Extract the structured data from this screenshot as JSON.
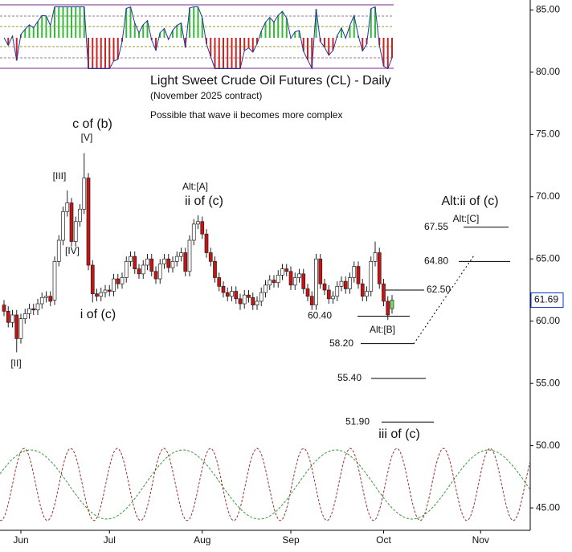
{
  "chart_data": {
    "type": "candlestick",
    "title": "Light Sweet Crude Oil Futures (CL) - Daily",
    "subtitle": "(November 2025 contract)",
    "note": "Possible that wave ii becomes more complex",
    "annotations": [
      "c of (b)",
      "[V]",
      "[III]",
      "[IV]",
      "[II]",
      "i of (c)",
      "Alt:[A]",
      "ii of (c)",
      "Alt:ii of (c)",
      "Alt:[C]",
      "Alt:[B]",
      "iii of (c)"
    ],
    "categories": [
      null,
      null,
      null,
      null,
      "Jun",
      null,
      null,
      null,
      null,
      null,
      null,
      null,
      null,
      null,
      null,
      null,
      null,
      null,
      null,
      null,
      null,
      null,
      null,
      null,
      null,
      "Jul",
      null,
      null,
      null,
      null,
      null,
      null,
      null,
      null,
      null,
      null,
      null,
      null,
      null,
      null,
      null,
      null,
      null,
      null,
      null,
      null,
      null,
      "Aug",
      null,
      null,
      null,
      null,
      null,
      null,
      null,
      null,
      null,
      null,
      null,
      null,
      null,
      null,
      null,
      null,
      null,
      null,
      null,
      null,
      "Sep",
      null,
      null,
      null,
      null,
      null,
      null,
      null,
      null,
      null,
      null,
      null,
      null,
      null,
      null,
      null,
      null,
      null,
      null,
      null,
      null,
      null,
      "Oct",
      null,
      null,
      null,
      null,
      null,
      null,
      null,
      null,
      null,
      null,
      null,
      null,
      null,
      null,
      null,
      null,
      null,
      null,
      null,
      null,
      null,
      null,
      "Nov",
      null,
      null,
      null,
      null,
      null,
      null,
      null,
      null,
      null,
      null,
      null
    ],
    "open": [
      61.3,
      60.8,
      59.9,
      60.5,
      58.6,
      60.2,
      60.6,
      61.0,
      60.9,
      61.4,
      61.9,
      62.0,
      61.7,
      64.8,
      66.5,
      68.8,
      69.5,
      66.4,
      68.0,
      69.0,
      71.5,
      64.5,
      62.2,
      62.0,
      62.3,
      62.5,
      62.4,
      63.4,
      63.0,
      63.5,
      64.8,
      65.2,
      64.2,
      63.8,
      64.5,
      65.0,
      64.0,
      63.4,
      64.6,
      65.0,
      64.3,
      64.8,
      65.2,
      65.5,
      64.0,
      66.5,
      67.8,
      68.0,
      67.0,
      65.5,
      64.8,
      63.5,
      62.8,
      62.3,
      62.0,
      62.4,
      61.8,
      61.4,
      62.1,
      61.9,
      61.3,
      61.6,
      62.3,
      62.9,
      63.3,
      63.1,
      63.7,
      64.2,
      64.0,
      62.9,
      63.5,
      63.8,
      62.6,
      62.0,
      61.3,
      65.0,
      63.0,
      62.5,
      61.8,
      62.0,
      62.8,
      63.2,
      62.6,
      63.5,
      64.4,
      63.0,
      62.0,
      62.4,
      64.8,
      65.5,
      63.0,
      61.6,
      61.0,
      null,
      null,
      null,
      null,
      null,
      null,
      null,
      null,
      null,
      null,
      null,
      null,
      null,
      null,
      null,
      null,
      null,
      null,
      null,
      null,
      null,
      null,
      null,
      null,
      null,
      null,
      null,
      null,
      null,
      null,
      null,
      null
    ],
    "high": [
      61.7,
      61.2,
      60.9,
      60.9,
      60.6,
      61.0,
      61.4,
      61.4,
      61.8,
      62.3,
      62.4,
      62.4,
      65.2,
      66.9,
      69.2,
      70.5,
      69.9,
      68.4,
      69.4,
      73.5,
      71.9,
      64.9,
      62.6,
      62.7,
      62.9,
      62.9,
      63.8,
      63.8,
      63.9,
      65.2,
      65.6,
      65.6,
      64.6,
      64.9,
      65.4,
      65.4,
      64.4,
      65.0,
      65.4,
      65.4,
      65.2,
      65.6,
      65.9,
      65.9,
      66.9,
      68.2,
      68.5,
      68.4,
      67.4,
      65.9,
      65.2,
      63.9,
      63.2,
      62.7,
      62.8,
      62.8,
      62.2,
      62.5,
      62.5,
      62.3,
      62.0,
      62.7,
      63.3,
      63.7,
      63.7,
      64.1,
      64.6,
      64.6,
      64.4,
      63.9,
      64.2,
      64.2,
      63.0,
      62.4,
      65.4,
      65.4,
      63.4,
      62.9,
      62.4,
      63.2,
      63.6,
      63.6,
      63.9,
      64.8,
      64.8,
      63.4,
      62.8,
      65.2,
      66.4,
      65.9,
      63.4,
      62.0,
      62.1,
      null,
      null,
      null,
      null,
      null,
      null,
      null,
      null,
      null,
      null,
      null,
      null,
      null,
      null,
      null,
      null,
      null,
      null,
      null,
      null,
      null,
      null,
      null,
      null,
      null,
      null,
      null,
      null,
      null,
      null,
      null,
      null
    ],
    "low": [
      60.4,
      59.5,
      59.5,
      57.5,
      58.2,
      59.8,
      60.2,
      60.5,
      60.5,
      61.0,
      61.5,
      61.2,
      61.3,
      64.4,
      66.1,
      68.4,
      66.0,
      66.0,
      67.6,
      68.6,
      64.1,
      61.5,
      61.6,
      61.6,
      61.9,
      62.0,
      62.0,
      62.6,
      62.6,
      63.1,
      64.4,
      63.8,
      63.4,
      63.4,
      64.1,
      63.6,
      63.0,
      63.0,
      64.2,
      63.9,
      63.9,
      64.4,
      64.8,
      63.6,
      63.6,
      66.1,
      67.4,
      66.6,
      65.1,
      64.4,
      63.1,
      62.4,
      61.9,
      61.6,
      61.6,
      61.4,
      60.9,
      61.0,
      61.5,
      60.9,
      60.9,
      61.2,
      61.9,
      62.5,
      62.7,
      62.7,
      63.3,
      63.6,
      62.5,
      62.5,
      63.1,
      62.2,
      61.6,
      60.9,
      60.9,
      62.6,
      62.1,
      61.4,
      61.4,
      61.6,
      62.4,
      62.2,
      62.2,
      63.1,
      62.6,
      61.6,
      61.6,
      62.0,
      64.4,
      62.6,
      61.2,
      60.1,
      60.6,
      null,
      null,
      null,
      null,
      null,
      null,
      null,
      null,
      null,
      null,
      null,
      null,
      null,
      null,
      null,
      null,
      null,
      null,
      null,
      null,
      null,
      null,
      null,
      null,
      null,
      null,
      null,
      null,
      null,
      null,
      null,
      null
    ],
    "close": [
      60.8,
      59.9,
      60.5,
      58.6,
      60.2,
      60.6,
      61.0,
      60.9,
      61.4,
      61.9,
      62.0,
      61.6,
      64.8,
      66.5,
      68.8,
      69.5,
      66.4,
      68.0,
      69.0,
      71.5,
      64.5,
      62.2,
      62.0,
      62.3,
      62.5,
      62.4,
      63.4,
      63.0,
      63.5,
      64.8,
      65.2,
      64.2,
      63.8,
      64.5,
      65.0,
      64.0,
      63.4,
      64.6,
      65.0,
      64.3,
      64.8,
      65.2,
      65.5,
      64.0,
      66.5,
      67.8,
      68.0,
      67.0,
      65.5,
      64.8,
      63.5,
      62.8,
      62.3,
      62.0,
      62.4,
      61.8,
      61.4,
      62.1,
      61.9,
      61.3,
      61.6,
      62.3,
      62.9,
      63.3,
      63.1,
      63.7,
      64.2,
      64.0,
      62.9,
      63.5,
      63.8,
      62.6,
      62.0,
      61.3,
      65.0,
      63.0,
      62.5,
      61.8,
      62.0,
      62.8,
      63.2,
      62.6,
      63.5,
      64.4,
      63.0,
      62.0,
      62.4,
      64.8,
      65.5,
      63.0,
      61.6,
      60.5,
      61.69,
      null,
      null,
      null,
      null,
      null,
      null,
      null,
      null,
      null,
      null,
      null,
      null,
      null,
      null,
      null,
      null,
      null,
      null,
      null,
      null,
      null,
      null,
      null,
      null,
      null,
      null,
      null,
      null,
      null,
      null,
      null,
      null
    ],
    "up_color": "#ffffff",
    "down_color": "#cc1111",
    "last_bar_color": "#77dd66",
    "ylim": [
      43.2,
      85.8
    ],
    "yticks": [
      {
        "value": 45,
        "label": "45.00"
      },
      {
        "value": 50,
        "label": "50.00"
      },
      {
        "value": 55,
        "label": "55.00"
      },
      {
        "value": 60,
        "label": "60.00"
      },
      {
        "value": 65,
        "label": "65.00"
      },
      {
        "value": 70,
        "label": "70.00"
      },
      {
        "value": 75,
        "label": "75.00"
      },
      {
        "value": 80,
        "label": "80.00"
      },
      {
        "value": 85,
        "label": "85.00"
      }
    ],
    "levels": [
      67.55,
      {
        "value": 64.8,
        "label": "64.80"
      },
      {
        "value": 62.5,
        "label": "62.50"
      },
      {
        "value": 60.4,
        "label": "60.40"
      },
      {
        "value": 58.2,
        "label": "58.20"
      },
      {
        "value": 55.4,
        "label": "55.40"
      },
      {
        "value": 51.9,
        "label": "51.90"
      }
    ],
    "last_price": 61.69,
    "last_price_color": "#0a36c8"
  }
}
